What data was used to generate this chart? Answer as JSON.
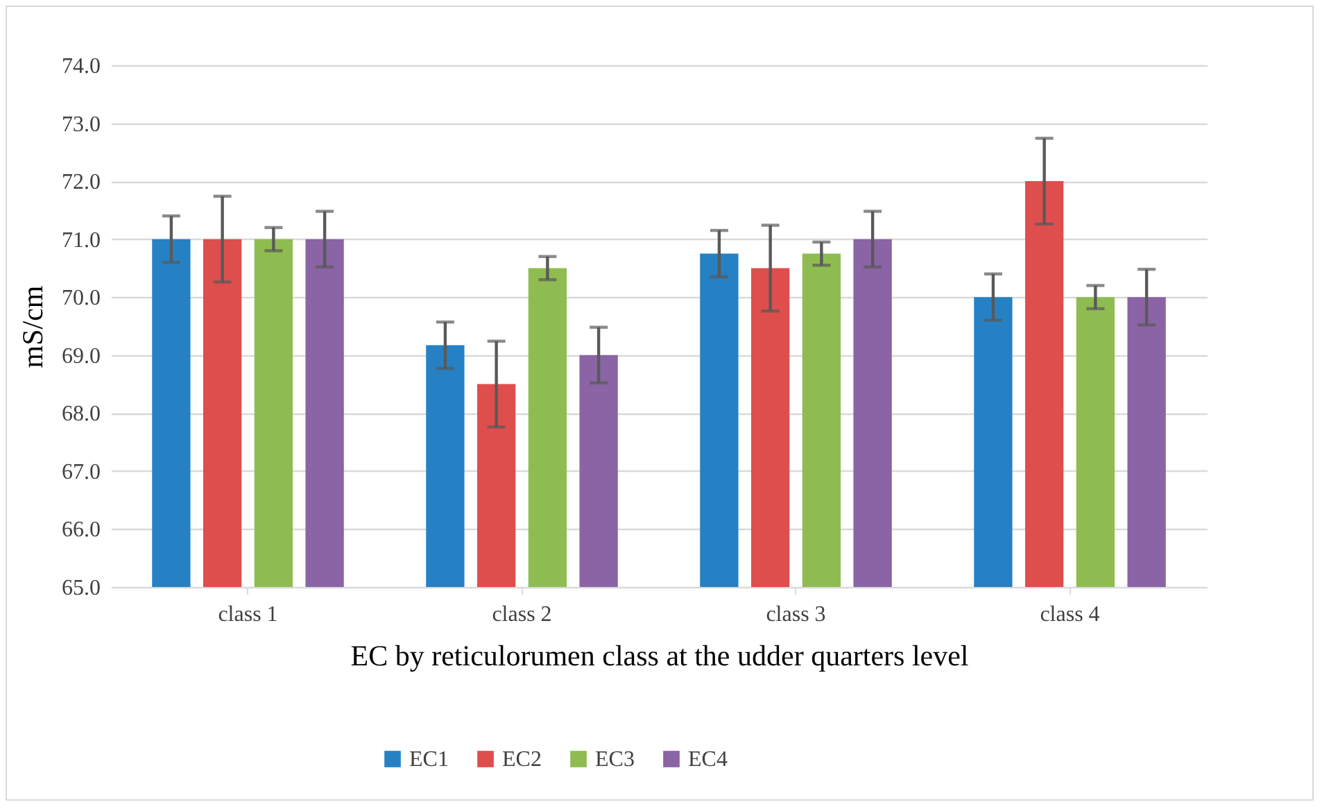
{
  "chart_data": {
    "type": "bar",
    "xlabel": "EC by reticulorumen class at the udder quarters level",
    "ylabel": "mS/cm",
    "categories": [
      "class 1",
      "class 2",
      "class 3",
      "class 4"
    ],
    "series": [
      {
        "name": "EC1",
        "color": "#2581c4",
        "values": [
          71.0,
          69.17,
          70.75,
          70.0
        ],
        "errors": [
          0.4,
          0.4,
          0.4,
          0.4
        ]
      },
      {
        "name": "EC2",
        "color": "#dd4e4d",
        "values": [
          71.0,
          68.5,
          70.5,
          72.0
        ],
        "errors": [
          0.74,
          0.74,
          0.74,
          0.74
        ]
      },
      {
        "name": "EC3",
        "color": "#8fbc50",
        "values": [
          71.0,
          70.5,
          70.75,
          70.0
        ],
        "errors": [
          0.2,
          0.2,
          0.2,
          0.2
        ]
      },
      {
        "name": "EC4",
        "color": "#8a64a5",
        "values": [
          71.0,
          69.0,
          71.0,
          70.0
        ],
        "errors": [
          0.48,
          0.48,
          0.48,
          0.48
        ]
      }
    ],
    "ylim": [
      65,
      74
    ],
    "yticks": [
      {
        "value": 65,
        "label": "65.0"
      },
      {
        "value": 66,
        "label": "66.0"
      },
      {
        "value": 67,
        "label": "67.0"
      },
      {
        "value": 68,
        "label": "68.0"
      },
      {
        "value": 69,
        "label": "69.0"
      },
      {
        "value": 70,
        "label": "70.0"
      },
      {
        "value": 71,
        "label": "71.0"
      },
      {
        "value": 72,
        "label": "72.0"
      },
      {
        "value": 73,
        "label": "73.0"
      },
      {
        "value": 74,
        "label": "74.0"
      }
    ],
    "grid": "y",
    "legend": "bottom"
  }
}
